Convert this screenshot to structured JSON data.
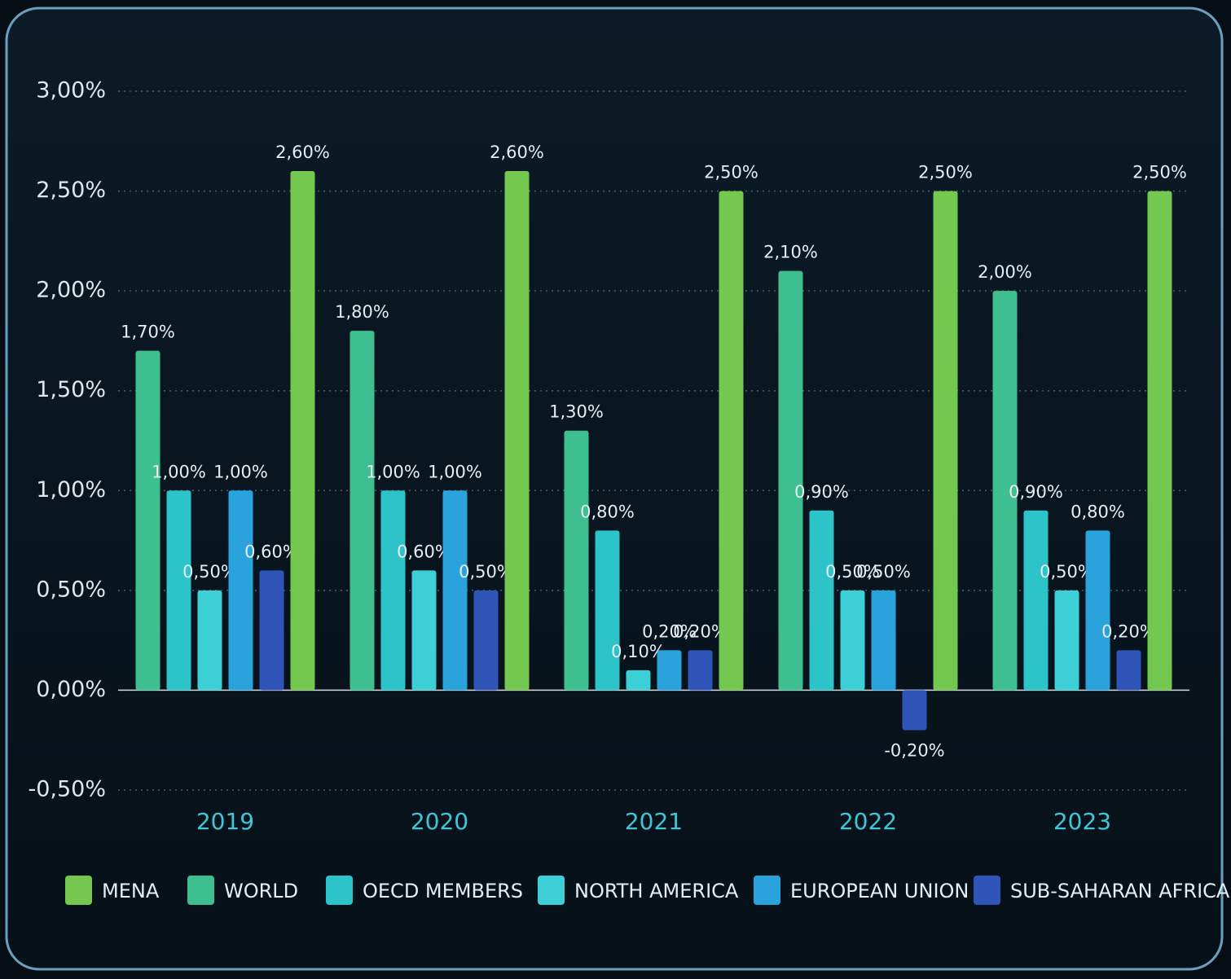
{
  "chart_data": {
    "type": "bar",
    "categories": [
      "2019",
      "2020",
      "2021",
      "2022",
      "2023"
    ],
    "series": [
      {
        "name": "WORLD",
        "color": "#3dbf8f",
        "values": [
          1.7,
          1.8,
          1.3,
          2.1,
          2.0
        ],
        "value_labels": [
          "1,70%",
          "1,80%",
          "1,30%",
          "2,10%",
          "2,00%"
        ]
      },
      {
        "name": "OECD MEMBERS",
        "color": "#2cc3c9",
        "values": [
          1.0,
          1.0,
          0.8,
          0.9,
          0.9
        ],
        "value_labels": [
          "1,00%",
          "1,00%",
          "0,80%",
          "0,90%",
          "0,90%"
        ]
      },
      {
        "name": "NORTH AMERICA",
        "color": "#3ccfd6",
        "values": [
          0.5,
          0.6,
          0.1,
          0.5,
          0.5
        ],
        "value_labels": [
          "0,50%",
          "0,60%",
          "0,10%",
          "0,50%",
          "0,50%"
        ]
      },
      {
        "name": "EUROPEAN UNION",
        "color": "#2aa2dc",
        "values": [
          1.0,
          1.0,
          0.2,
          0.5,
          0.8
        ],
        "value_labels": [
          "1,00%",
          "1,00%",
          "0,20%",
          "0,50%",
          "0,80%"
        ]
      },
      {
        "name": "SUB-SAHARAN AFRICA",
        "color": "#2f55b8",
        "values": [
          0.6,
          0.5,
          0.2,
          -0.2,
          0.2
        ],
        "value_labels": [
          "0,60%",
          "0,50%",
          "0,20%",
          "-0,20%",
          "0,20%"
        ]
      },
      {
        "name": "MENA",
        "color": "#74c850",
        "values": [
          2.6,
          2.6,
          2.5,
          2.5,
          2.5
        ],
        "value_labels": [
          "2,60%",
          "2,60%",
          "2,50%",
          "2,50%",
          "2,50%"
        ]
      }
    ],
    "ylim": [
      -0.5,
      3.0
    ],
    "yticks": [
      {
        "value": -0.5,
        "label": "-0,50%"
      },
      {
        "value": 0,
        "label": "0,00%"
      },
      {
        "value": 0.5,
        "label": "0,50%"
      },
      {
        "value": 1.0,
        "label": "1,00%"
      },
      {
        "value": 1.5,
        "label": "1,50%"
      },
      {
        "value": 2.0,
        "label": "2,00%"
      },
      {
        "value": 2.5,
        "label": "2,50%"
      },
      {
        "value": 3.0,
        "label": "3,00%"
      }
    ],
    "grid": true
  }
}
